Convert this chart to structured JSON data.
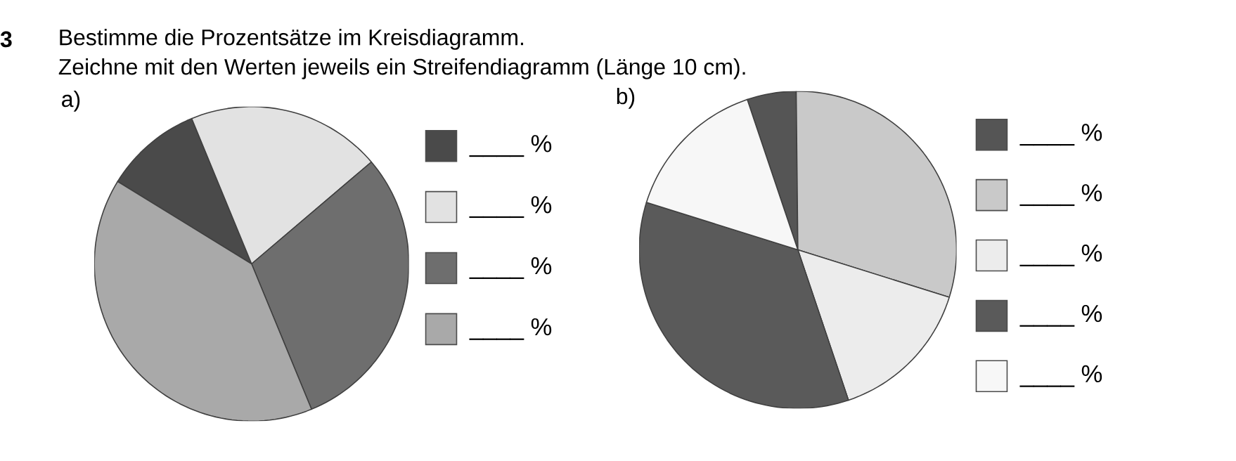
{
  "chart_data": [
    {
      "type": "pie",
      "title": "a)",
      "annotations": [
        "3",
        "Bestimme die Prozentsätze im Kreisdiagramm.",
        "Zeichne mit den Werten jeweils ein Streifendiagramm (Länge 10 cm)."
      ],
      "categories": [
        "____ %",
        "____ %",
        "____ %",
        "____ %"
      ],
      "values": [
        10,
        20,
        30,
        40
      ],
      "colors": [
        "#4a4a4a",
        "#e2e2e2",
        "#6e6e6e",
        "#a9a9a9"
      ],
      "legend": "right"
    },
    {
      "type": "pie",
      "title": "b)",
      "categories": [
        "____ %",
        "____ %",
        "____ %",
        "____ %",
        "____ %"
      ],
      "values": [
        5,
        30,
        15,
        35,
        15
      ],
      "colors": [
        "#555555",
        "#c9c9c9",
        "#ececec",
        "#5a5a5a",
        "#f7f7f7"
      ],
      "legend": "right"
    }
  ]
}
